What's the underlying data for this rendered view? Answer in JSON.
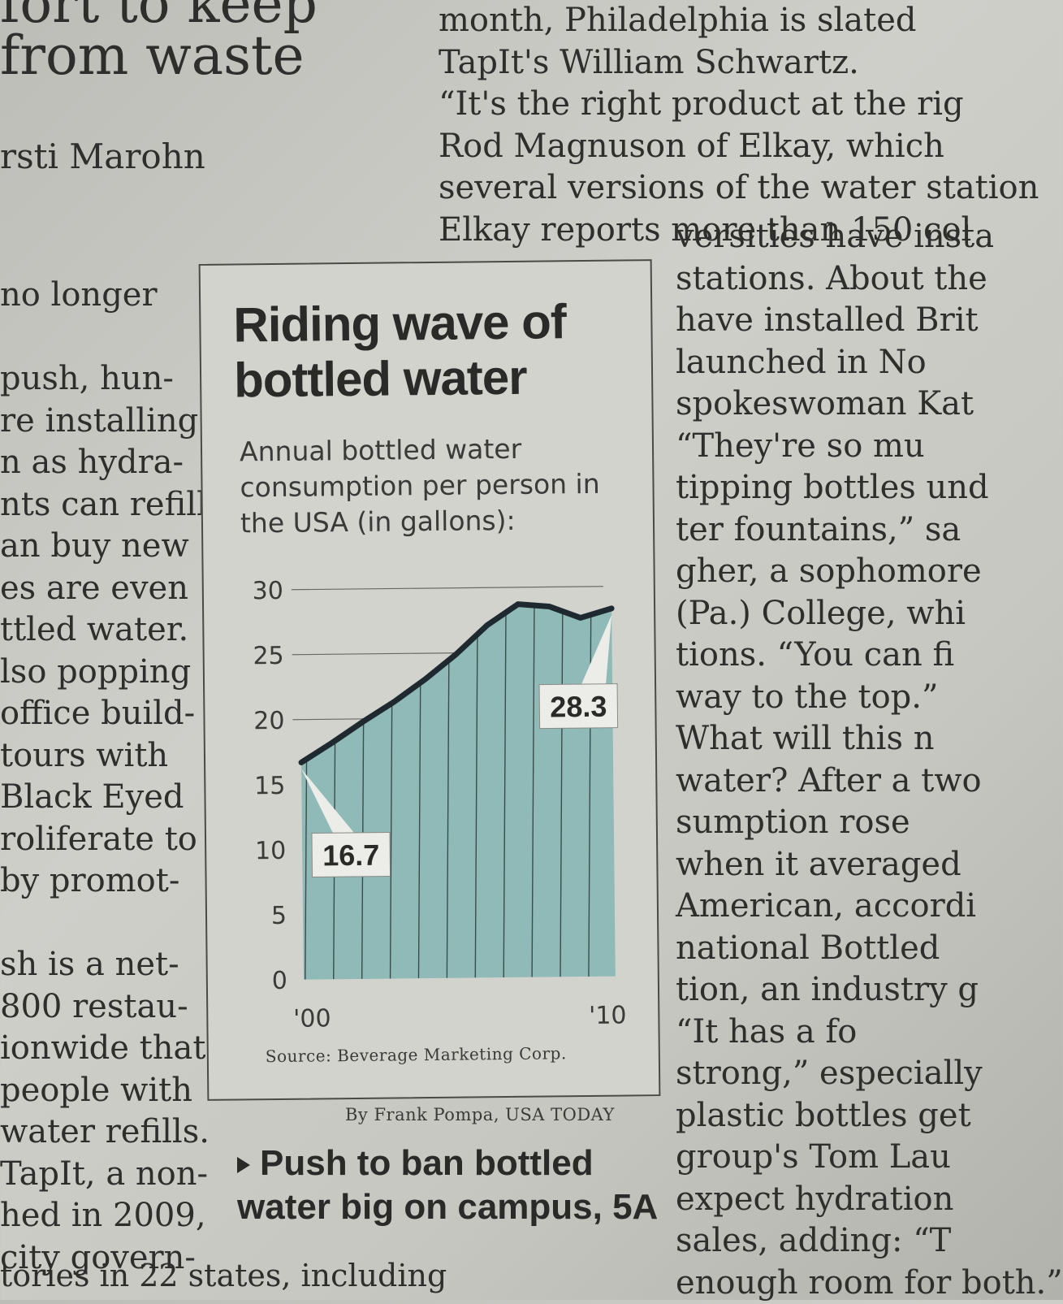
{
  "article": {
    "headline_lines": [
      "fort to keep",
      "from waste"
    ],
    "byline": "rsti Marohn",
    "left_column": [
      "no longer",
      "",
      "push, hun-",
      "re installing",
      "n as hydra-",
      "nts can refill",
      "an buy new",
      "es are even",
      "ttled water.",
      "lso popping",
      "office build-",
      "tours with",
      "Black Eyed",
      "roliferate to",
      "by promot-",
      "",
      "sh is a net-",
      "800 restau-",
      "ionwide that",
      "people with",
      "water refills.",
      "TapIt, a non-",
      "hed in 2009,",
      "city govern-"
    ],
    "right_column_top": [
      "month, Philadelphia is slated",
      "TapIt's William Schwartz.",
      "“It's the right product at the rig",
      "Rod Magnuson of Elkay, which",
      "several versions of the water station",
      "Elkay reports more than 150 col"
    ],
    "right_column": [
      "versities have insta",
      "stations. About the",
      "have installed Brit",
      "launched in No",
      "spokeswoman Kat",
      "“They're so mu",
      "tipping bottles und",
      "ter fountains,” sa",
      "gher, a sophomore",
      "(Pa.) College, whi",
      "tions. “You can fi",
      "way to the top.”",
      "What will this n",
      "water? After a two",
      "sumption rose",
      "when it averaged",
      "American, accordi",
      "national Bottled",
      "tion, an industry g",
      "“It has a fo",
      "strong,” especially",
      "plastic bottles get",
      "group's Tom Lau",
      "expect hydration",
      "sales, adding: “T",
      "enough room for both.”"
    ],
    "bottom_line": "tories in 22 states, including"
  },
  "graphic": {
    "title": "Riding wave of bottled water",
    "subtitle": "Annual bottled water consumption per person in the USA (in gallons):",
    "source": "Source: Beverage Marketing Corp.",
    "credit": "By Frank Pompa, USA TODAY",
    "teaser": "Push to ban bottled water big on campus, 5A",
    "teaser_icon": "triangle-right-icon"
  },
  "chart_data": {
    "type": "area",
    "x": [
      2000,
      2001,
      2002,
      2003,
      2004,
      2005,
      2006,
      2007,
      2008,
      2009,
      2010
    ],
    "values": [
      16.7,
      18.2,
      19.8,
      21.3,
      23.0,
      24.9,
      27.1,
      28.7,
      28.5,
      27.6,
      28.3
    ],
    "ylim": [
      0,
      30
    ],
    "yticks": [
      0,
      5,
      10,
      15,
      20,
      25,
      30
    ],
    "x_tick_labels": [
      {
        "x": 2000,
        "label": "'00"
      },
      {
        "x": 2010,
        "label": "'10"
      }
    ],
    "callouts": [
      {
        "x": 2000,
        "label": "16.7"
      },
      {
        "x": 2010,
        "label": "28.3"
      }
    ],
    "fill_color": "#8fbab8",
    "line_color": "#1f2a30"
  }
}
